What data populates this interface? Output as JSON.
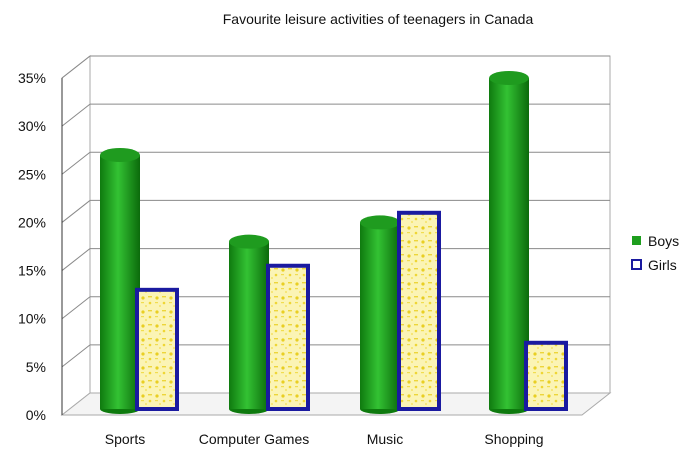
{
  "chart_data": {
    "type": "bar",
    "title": "Favourite leisure activities of teenagers in Canada",
    "categories": [
      "Sports",
      "Computer Games",
      "Music",
      "Shopping"
    ],
    "series": [
      {
        "name": "Boys",
        "values": [
          27,
          18,
          20,
          35
        ],
        "color": "#1e9e1e"
      },
      {
        "name": "Girls",
        "values": [
          13,
          15.5,
          21,
          7.5
        ],
        "color": "#f3e14a",
        "border": "#1a1aa0"
      }
    ],
    "ylim": [
      0,
      35
    ],
    "yticks": [
      "0%",
      "5%",
      "10%",
      "15%",
      "20%",
      "25%",
      "30%",
      "35%"
    ],
    "ytick_values": [
      0,
      5,
      10,
      15,
      20,
      25,
      30,
      35
    ],
    "grid": true,
    "legend_position": "right"
  }
}
